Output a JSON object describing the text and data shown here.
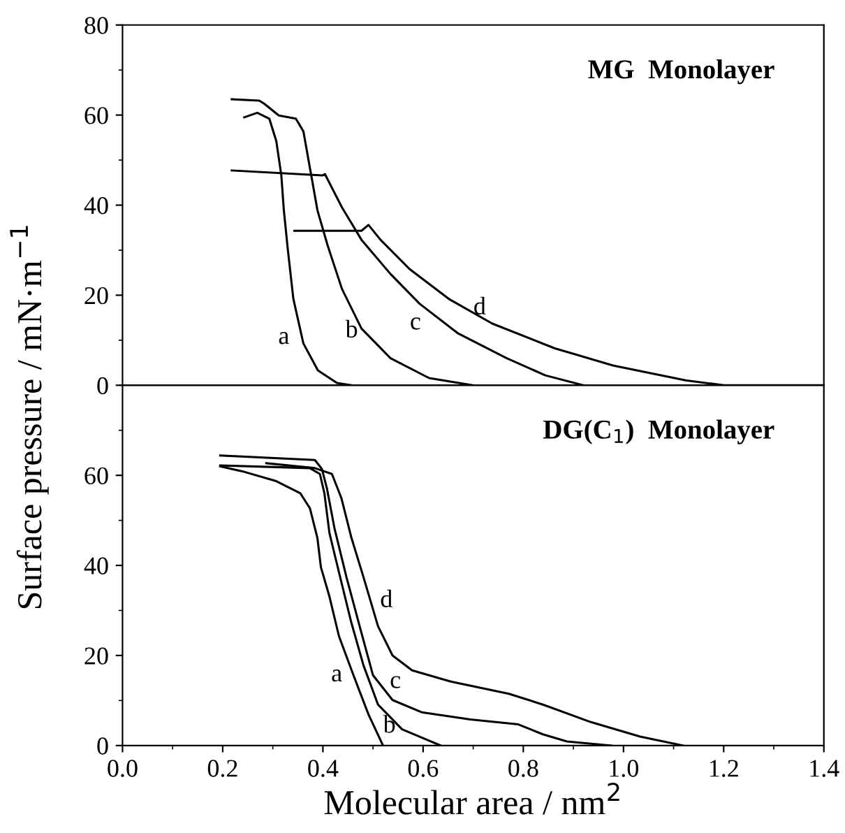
{
  "chart_data": [
    {
      "type": "line",
      "title": "MG  Monolayer",
      "ylabel": "Surface pressure / mN·m$^{−1}$",
      "xlim": [
        0,
        1.4
      ],
      "ylim": [
        0,
        80
      ],
      "yticks": [
        0,
        20,
        40,
        60,
        80
      ],
      "tick_labels": "y",
      "grid": false,
      "marker": "none",
      "line_style": "solid",
      "series": [
        {
          "name": "a",
          "color": "#000000",
          "x": [
            0.243,
            0.269,
            0.293,
            0.307,
            0.317,
            0.322,
            0.33,
            0.341,
            0.361,
            0.39,
            0.428,
            0.457
          ],
          "values": [
            59.5,
            60.5,
            59.2,
            54.2,
            46.6,
            38.9,
            30.1,
            19.2,
            9.3,
            3.3,
            0.5,
            0
          ]
        },
        {
          "name": "b",
          "color": "#000000",
          "x": [
            0.218,
            0.273,
            0.283,
            0.312,
            0.346,
            0.361,
            0.375,
            0.389,
            0.409,
            0.438,
            0.477,
            0.535,
            0.612,
            0.699
          ],
          "values": [
            63.5,
            63.2,
            62.5,
            59.9,
            59.2,
            56.4,
            47.7,
            38.9,
            31.2,
            21.4,
            12.6,
            6.0,
            1.6,
            0
          ]
        },
        {
          "name": "c",
          "color": "#000000",
          "x": [
            0.218,
            0.399,
            0.404,
            0.438,
            0.477,
            0.535,
            0.593,
            0.67,
            0.767,
            0.844,
            0.92
          ],
          "values": [
            47.7,
            46.6,
            46.9,
            39.5,
            32.3,
            24.7,
            18.1,
            11.5,
            6.0,
            2.2,
            0
          ]
        },
        {
          "name": "d",
          "color": "#000000",
          "x": [
            0.343,
            0.477,
            0.491,
            0.515,
            0.573,
            0.651,
            0.738,
            0.863,
            0.979,
            1.124,
            1.2,
            1.4
          ],
          "values": [
            34.3,
            34.3,
            35.6,
            32.3,
            25.8,
            19.2,
            13.7,
            8.2,
            4.4,
            1.1,
            0,
            0
          ]
        }
      ]
    },
    {
      "type": "line",
      "title": "DG(C$_{1}$)  Monolayer",
      "xlabel": "Molecular area / nm$^{2}$",
      "xlim": [
        0,
        1.4
      ],
      "xticks": [
        {
          "value": 0,
          "label": "0.0"
        },
        0.2,
        0.4,
        0.6,
        0.8,
        {
          "value": 1,
          "label": "1.0"
        },
        1.2,
        1.4
      ],
      "ylim": [
        0,
        80
      ],
      "yticks": [
        0,
        20,
        40,
        60
      ],
      "grid": false,
      "marker": "none",
      "line_style": "solid",
      "series": [
        {
          "name": "a",
          "color": "#000000",
          "x": [
            0.195,
            0.239,
            0.307,
            0.355,
            0.374,
            0.389,
            0.396,
            0.413,
            0.432,
            0.461,
            0.491,
            0.52
          ],
          "values": [
            62.0,
            60.9,
            58.7,
            56.0,
            52.7,
            46.1,
            39.6,
            33.1,
            24.3,
            15.6,
            6.9,
            0
          ]
        },
        {
          "name": "b",
          "color": "#000000",
          "x": [
            0.195,
            0.374,
            0.394,
            0.403,
            0.413,
            0.432,
            0.456,
            0.481,
            0.51,
            0.558,
            0.635
          ],
          "values": [
            62.2,
            61.6,
            60.3,
            56.0,
            47.2,
            38.5,
            27.6,
            17.8,
            9.1,
            3.6,
            0
          ]
        },
        {
          "name": "c",
          "color": "#000000",
          "x": [
            0.195,
            0.384,
            0.398,
            0.408,
            0.423,
            0.447,
            0.476,
            0.5,
            0.539,
            0.597,
            0.694,
            0.79,
            0.839,
            0.887,
            0.975
          ],
          "values": [
            64.4,
            63.4,
            61.4,
            57.1,
            48.3,
            37.4,
            25.4,
            15.6,
            10.1,
            7.4,
            5.8,
            4.7,
            2.5,
            0.9,
            0
          ]
        },
        {
          "name": "d",
          "color": "#000000",
          "x": [
            0.287,
            0.384,
            0.418,
            0.437,
            0.457,
            0.481,
            0.51,
            0.539,
            0.578,
            0.655,
            0.771,
            0.839,
            0.935,
            1.033,
            1.119
          ],
          "values": [
            62.7,
            61.6,
            60.3,
            54.9,
            46.1,
            37.4,
            26.5,
            20.0,
            16.7,
            14.2,
            11.5,
            9.1,
            5.2,
            2.0,
            0
          ]
        }
      ]
    }
  ]
}
